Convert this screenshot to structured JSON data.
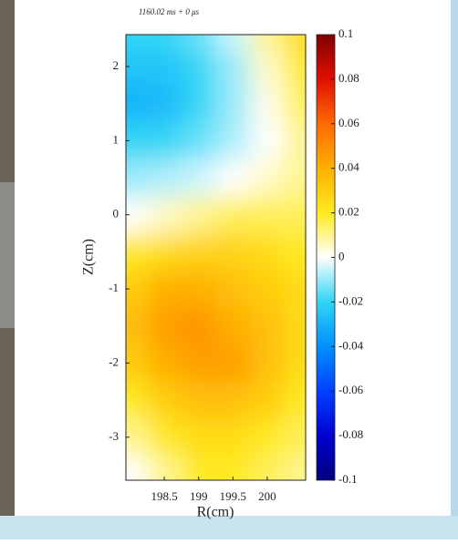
{
  "chart_data": {
    "type": "contour",
    "title": "1160.02 ms + 0 μs",
    "x_label": "R(cm)",
    "y_label": "Z(cm)",
    "x": [
      198.0,
      198.5,
      199.0,
      199.5,
      200.0,
      200.5
    ],
    "y": [
      2.4,
      2.0,
      1.5,
      1.0,
      0.5,
      0,
      -0.5,
      -1,
      -1.5,
      -2,
      -2.5,
      -3,
      -3.5
    ],
    "z": [
      [
        -0.02,
        -0.02,
        -0.015,
        -0.005,
        0.01,
        0.025
      ],
      [
        -0.025,
        -0.025,
        -0.02,
        -0.01,
        0.005,
        0.02
      ],
      [
        -0.03,
        -0.028,
        -0.02,
        -0.01,
        0.002,
        0.015
      ],
      [
        -0.02,
        -0.02,
        -0.015,
        -0.008,
        0.0,
        0.01
      ],
      [
        -0.01,
        -0.008,
        -0.005,
        0.0,
        0.005,
        0.01
      ],
      [
        0.0,
        0.005,
        0.01,
        0.015,
        0.015,
        0.015
      ],
      [
        0.02,
        0.025,
        0.028,
        0.028,
        0.025,
        0.02
      ],
      [
        0.03,
        0.04,
        0.04,
        0.035,
        0.03,
        0.025
      ],
      [
        0.035,
        0.045,
        0.048,
        0.04,
        0.035,
        0.025
      ],
      [
        0.03,
        0.04,
        0.045,
        0.045,
        0.035,
        0.025
      ],
      [
        0.02,
        0.03,
        0.035,
        0.035,
        0.03,
        0.02
      ],
      [
        0.01,
        0.02,
        0.025,
        0.025,
        0.02,
        0.015
      ],
      [
        0.0,
        0.01,
        0.02,
        0.02,
        0.015,
        0.01
      ]
    ],
    "xlim": [
      197.94,
      200.56
    ],
    "xticks": [
      198.5,
      199,
      199.5,
      200
    ],
    "ylim": [
      -3.58,
      2.43
    ],
    "yticks": [
      -3,
      -2,
      -1,
      0,
      1,
      2
    ],
    "clim": [
      -0.1,
      0.1
    ],
    "cticks": [
      -0.1,
      -0.08,
      -0.06,
      -0.04,
      -0.02,
      0,
      0.02,
      0.04,
      0.06,
      0.08,
      0.1
    ],
    "colormap": [
      "#00007f",
      "#0000d0",
      "#0040ff",
      "#0090ff",
      "#30d5f5",
      "#ffffff",
      "#ffea20",
      "#ffb000",
      "#ff6a00",
      "#e01000",
      "#800000"
    ]
  }
}
